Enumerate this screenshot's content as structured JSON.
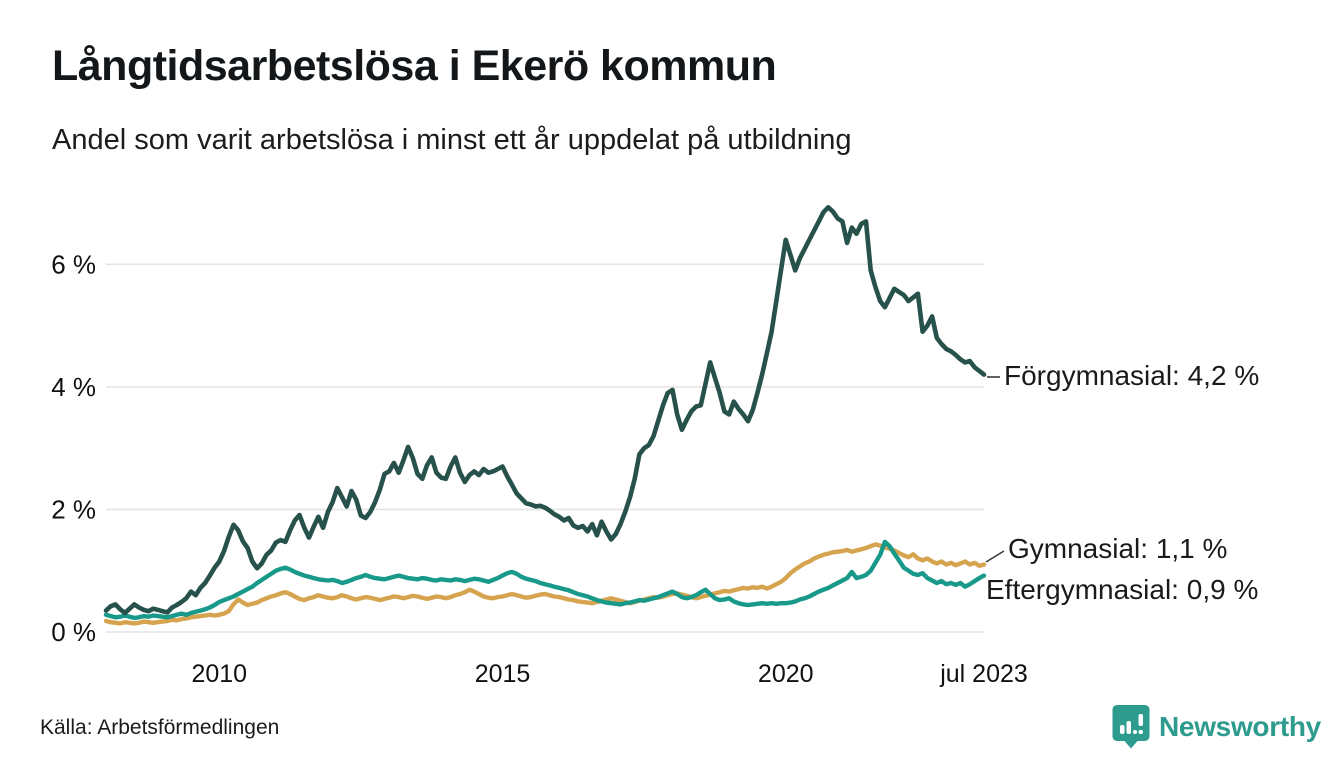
{
  "header": {
    "title": "Långtidsarbetslösa i Ekerö kommun",
    "subtitle": "Andel som varit arbetslösa i minst ett år uppdelat på utbildning"
  },
  "footer": {
    "source": "Källa: Arbetsförmedlingen",
    "brand": "Newsworthy",
    "brand_color": "#2d9b8d"
  },
  "chart_data": {
    "type": "line",
    "title": "Långtidsarbetslösa i Ekerö kommun",
    "subtitle": "Andel som varit arbetslösa i minst ett år uppdelat på utbildning",
    "unit": "%",
    "x_unit": "month",
    "x_range": [
      "2008-01",
      "2023-07"
    ],
    "xlim": [
      2008.0,
      2023.5
    ],
    "ylim": [
      0,
      7.2
    ],
    "grid": "horizontal",
    "grid_color": "#e4e4e4",
    "y_ticks": [
      {
        "value": 0,
        "label": "0 %"
      },
      {
        "value": 2,
        "label": "2 %"
      },
      {
        "value": 4,
        "label": "4 %"
      },
      {
        "value": 6,
        "label": "6 %"
      }
    ],
    "x_ticks": [
      {
        "value": 2010.0,
        "label": "2010"
      },
      {
        "value": 2015.0,
        "label": "2015"
      },
      {
        "value": 2020.0,
        "label": "2020"
      },
      {
        "value": 2023.5,
        "label": "jul 2023"
      }
    ],
    "series": [
      {
        "name": "Förgymnasial",
        "color": "#27514b",
        "end_value": "4,2 %",
        "end_label": "Förgymnasial: 4,2 %",
        "values": [
          0.35,
          0.42,
          0.45,
          0.37,
          0.31,
          0.38,
          0.45,
          0.4,
          0.36,
          0.34,
          0.38,
          0.36,
          0.34,
          0.32,
          0.4,
          0.44,
          0.49,
          0.55,
          0.66,
          0.6,
          0.72,
          0.8,
          0.92,
          1.05,
          1.15,
          1.32,
          1.55,
          1.75,
          1.66,
          1.48,
          1.37,
          1.15,
          1.04,
          1.12,
          1.26,
          1.33,
          1.46,
          1.5,
          1.47,
          1.66,
          1.82,
          1.91,
          1.7,
          1.54,
          1.72,
          1.88,
          1.7,
          1.96,
          2.12,
          2.35,
          2.2,
          2.05,
          2.3,
          2.16,
          1.9,
          1.86,
          1.96,
          2.12,
          2.32,
          2.58,
          2.62,
          2.76,
          2.6,
          2.8,
          3.02,
          2.84,
          2.58,
          2.5,
          2.72,
          2.85,
          2.6,
          2.52,
          2.5,
          2.7,
          2.85,
          2.6,
          2.45,
          2.56,
          2.62,
          2.56,
          2.66,
          2.6,
          2.62,
          2.66,
          2.7,
          2.54,
          2.4,
          2.26,
          2.18,
          2.1,
          2.08,
          2.05,
          2.06,
          2.03,
          1.98,
          1.92,
          1.88,
          1.82,
          1.86,
          1.74,
          1.7,
          1.73,
          1.64,
          1.76,
          1.58,
          1.8,
          1.64,
          1.51,
          1.6,
          1.76,
          1.96,
          2.2,
          2.5,
          2.9,
          3.0,
          3.05,
          3.2,
          3.45,
          3.7,
          3.9,
          3.95,
          3.55,
          3.3,
          3.46,
          3.6,
          3.68,
          3.7,
          4.05,
          4.4,
          4.15,
          3.9,
          3.6,
          3.55,
          3.76,
          3.64,
          3.55,
          3.44,
          3.62,
          3.9,
          4.2,
          4.55,
          4.9,
          5.4,
          5.9,
          6.4,
          6.15,
          5.9,
          6.1,
          6.25,
          6.4,
          6.55,
          6.7,
          6.85,
          6.93,
          6.86,
          6.75,
          6.7,
          6.35,
          6.6,
          6.5,
          6.66,
          6.7,
          5.9,
          5.63,
          5.4,
          5.3,
          5.45,
          5.6,
          5.55,
          5.5,
          5.4,
          5.46,
          5.52,
          4.9,
          5.0,
          5.15,
          4.8,
          4.7,
          4.62,
          4.58,
          4.52,
          4.45,
          4.4,
          4.42,
          4.32,
          4.26,
          4.2
        ]
      },
      {
        "name": "Gymnasial",
        "color": "#d6a44f",
        "end_value": "1,1 %",
        "end_label": "Gymnasial: 1,1 %",
        "values": [
          0.18,
          0.16,
          0.15,
          0.14,
          0.16,
          0.15,
          0.14,
          0.15,
          0.17,
          0.16,
          0.15,
          0.16,
          0.17,
          0.18,
          0.2,
          0.19,
          0.21,
          0.22,
          0.24,
          0.25,
          0.26,
          0.27,
          0.28,
          0.27,
          0.28,
          0.3,
          0.34,
          0.45,
          0.53,
          0.48,
          0.44,
          0.46,
          0.48,
          0.52,
          0.55,
          0.58,
          0.6,
          0.63,
          0.65,
          0.62,
          0.58,
          0.54,
          0.52,
          0.55,
          0.57,
          0.6,
          0.58,
          0.56,
          0.55,
          0.57,
          0.6,
          0.58,
          0.55,
          0.53,
          0.55,
          0.57,
          0.56,
          0.54,
          0.52,
          0.54,
          0.56,
          0.58,
          0.57,
          0.55,
          0.57,
          0.59,
          0.58,
          0.56,
          0.54,
          0.56,
          0.58,
          0.57,
          0.55,
          0.57,
          0.6,
          0.62,
          0.65,
          0.69,
          0.66,
          0.62,
          0.58,
          0.56,
          0.55,
          0.57,
          0.58,
          0.6,
          0.62,
          0.6,
          0.58,
          0.56,
          0.57,
          0.59,
          0.61,
          0.62,
          0.6,
          0.58,
          0.57,
          0.55,
          0.53,
          0.52,
          0.5,
          0.49,
          0.48,
          0.47,
          0.49,
          0.51,
          0.53,
          0.55,
          0.53,
          0.51,
          0.49,
          0.47,
          0.49,
          0.51,
          0.53,
          0.55,
          0.57,
          0.56,
          0.58,
          0.6,
          0.62,
          0.63,
          0.61,
          0.59,
          0.57,
          0.55,
          0.57,
          0.59,
          0.61,
          0.63,
          0.65,
          0.67,
          0.66,
          0.68,
          0.7,
          0.72,
          0.71,
          0.73,
          0.72,
          0.74,
          0.71,
          0.74,
          0.78,
          0.82,
          0.88,
          0.96,
          1.02,
          1.07,
          1.12,
          1.15,
          1.2,
          1.23,
          1.26,
          1.28,
          1.3,
          1.31,
          1.32,
          1.34,
          1.31,
          1.33,
          1.35,
          1.37,
          1.4,
          1.43,
          1.41,
          1.38,
          1.36,
          1.33,
          1.29,
          1.25,
          1.22,
          1.27,
          1.2,
          1.17,
          1.2,
          1.15,
          1.12,
          1.15,
          1.1,
          1.13,
          1.09,
          1.12,
          1.15,
          1.1,
          1.13,
          1.08,
          1.1
        ]
      },
      {
        "name": "Eftergymnasial",
        "color": "#18998a",
        "end_value": "0,9 %",
        "end_label": "Eftergymnasial: 0,9 %",
        "values": [
          0.28,
          0.26,
          0.24,
          0.25,
          0.27,
          0.25,
          0.23,
          0.24,
          0.26,
          0.25,
          0.27,
          0.26,
          0.25,
          0.24,
          0.26,
          0.28,
          0.3,
          0.28,
          0.31,
          0.33,
          0.35,
          0.37,
          0.4,
          0.44,
          0.49,
          0.52,
          0.55,
          0.58,
          0.62,
          0.66,
          0.7,
          0.74,
          0.8,
          0.85,
          0.9,
          0.95,
          1.0,
          1.03,
          1.05,
          1.02,
          0.98,
          0.95,
          0.92,
          0.9,
          0.88,
          0.86,
          0.85,
          0.84,
          0.85,
          0.83,
          0.8,
          0.82,
          0.85,
          0.88,
          0.9,
          0.93,
          0.9,
          0.88,
          0.87,
          0.86,
          0.88,
          0.9,
          0.92,
          0.9,
          0.88,
          0.87,
          0.86,
          0.88,
          0.87,
          0.85,
          0.84,
          0.86,
          0.85,
          0.84,
          0.86,
          0.85,
          0.83,
          0.85,
          0.87,
          0.86,
          0.84,
          0.82,
          0.85,
          0.88,
          0.92,
          0.96,
          0.98,
          0.95,
          0.9,
          0.87,
          0.85,
          0.83,
          0.8,
          0.78,
          0.76,
          0.74,
          0.72,
          0.7,
          0.68,
          0.65,
          0.62,
          0.6,
          0.58,
          0.55,
          0.52,
          0.5,
          0.48,
          0.47,
          0.46,
          0.45,
          0.47,
          0.48,
          0.5,
          0.52,
          0.51,
          0.53,
          0.55,
          0.57,
          0.6,
          0.63,
          0.66,
          0.62,
          0.57,
          0.55,
          0.57,
          0.6,
          0.65,
          0.69,
          0.62,
          0.55,
          0.52,
          0.53,
          0.55,
          0.5,
          0.47,
          0.45,
          0.44,
          0.45,
          0.46,
          0.47,
          0.46,
          0.47,
          0.46,
          0.47,
          0.47,
          0.48,
          0.5,
          0.53,
          0.55,
          0.58,
          0.62,
          0.66,
          0.69,
          0.72,
          0.76,
          0.8,
          0.84,
          0.88,
          0.98,
          0.88,
          0.9,
          0.93,
          1.0,
          1.13,
          1.26,
          1.47,
          1.4,
          1.28,
          1.17,
          1.05,
          1.0,
          0.95,
          0.93,
          0.96,
          0.88,
          0.84,
          0.8,
          0.83,
          0.78,
          0.8,
          0.77,
          0.8,
          0.74,
          0.78,
          0.83,
          0.88,
          0.92
        ]
      }
    ]
  }
}
